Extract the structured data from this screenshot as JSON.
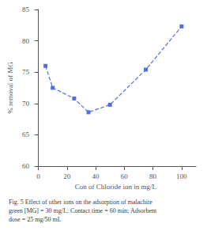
{
  "chart_data": {
    "type": "line",
    "x": [
      5,
      10,
      25,
      35,
      50,
      75,
      100
    ],
    "values": [
      76.0,
      72.5,
      70.8,
      68.6,
      69.8,
      75.4,
      82.3
    ],
    "xlim": [
      -2,
      110
    ],
    "ylim": [
      60,
      85
    ],
    "xticks": [
      0,
      20,
      40,
      60,
      80,
      100
    ],
    "yticks": [
      60,
      65,
      70,
      75,
      80,
      85
    ],
    "xlabel": "Con of Chloride ion in mg/L",
    "ylabel": "% removal of MG",
    "caption": "Fig. 5 Effect of other ions on the adsorption of malachite\ngreen [MG] = 30 mg/L; Contact time = 60 min; Adsorbent\ndose = 25 mg/50 mL",
    "marker": "square",
    "line_style": "dashed",
    "grid": false
  }
}
